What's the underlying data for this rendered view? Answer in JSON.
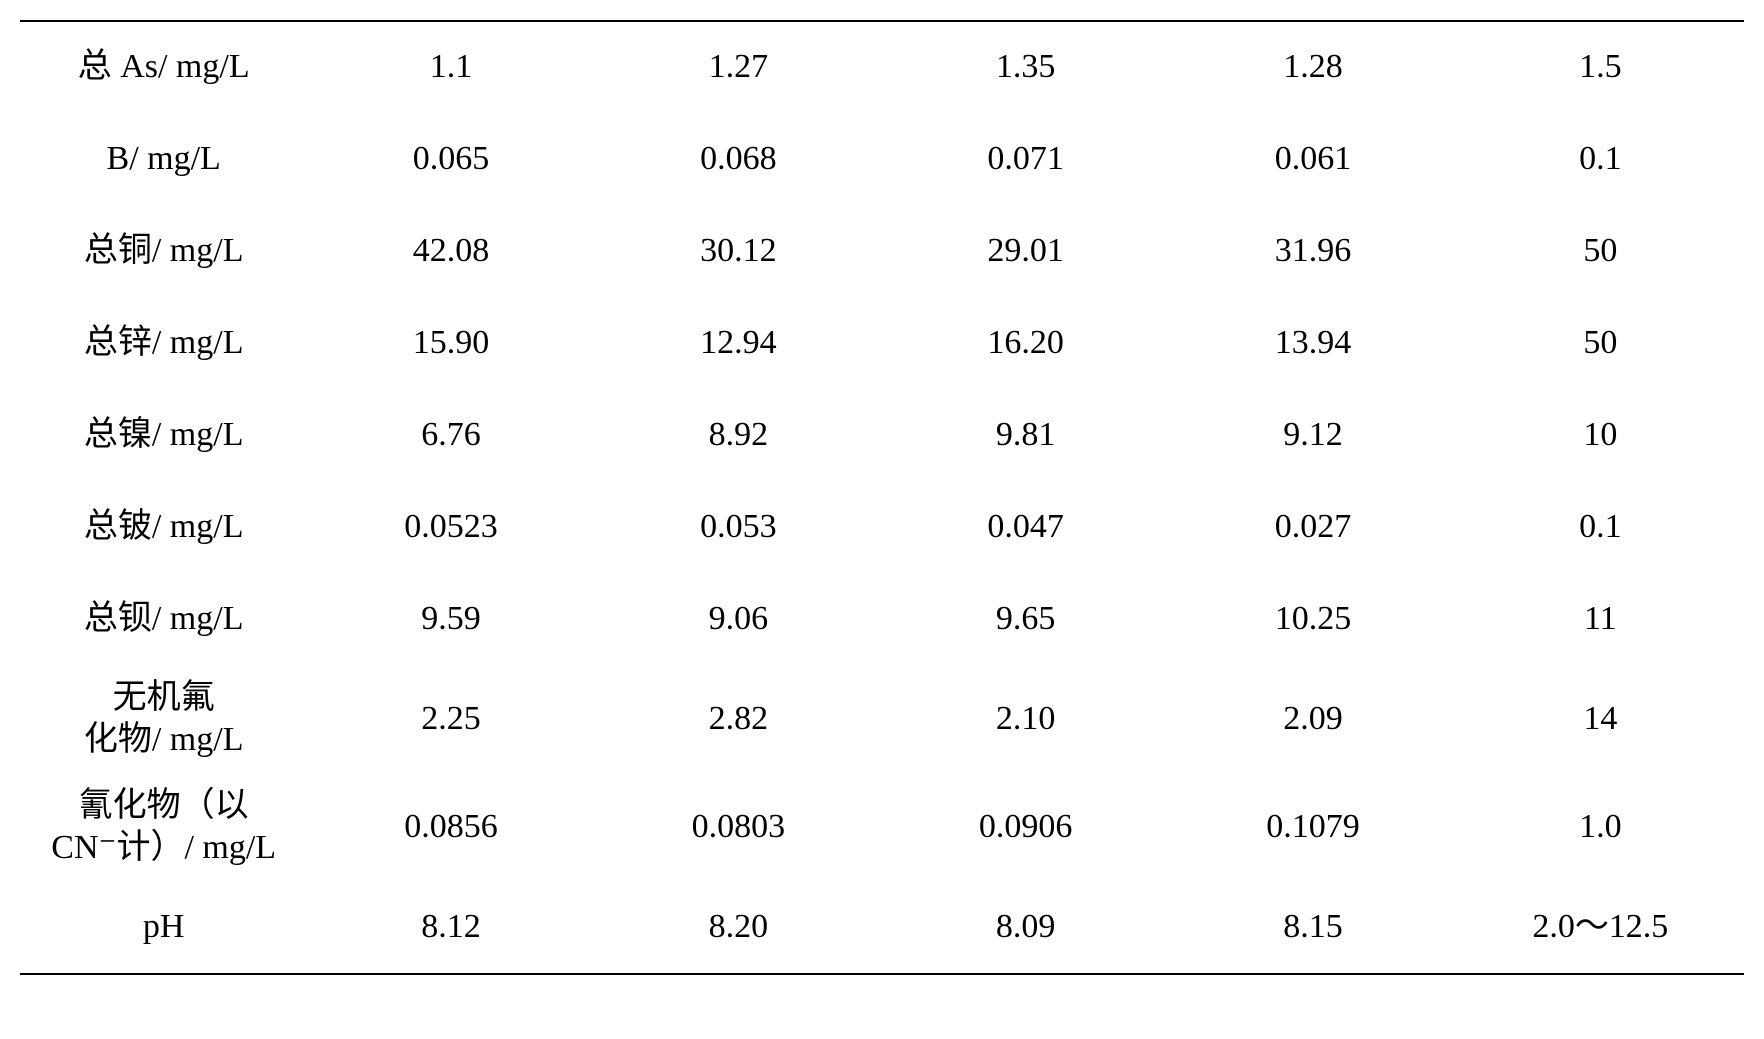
{
  "table": {
    "background_color": "#ffffff",
    "border_color": "#000000",
    "text_color": "#000000",
    "font_size_pt": 26,
    "column_widths_pct": [
      18,
      14.5,
      14.5,
      14.5,
      14.5,
      24
    ],
    "rows": [
      {
        "label": "总 As/ mg/L",
        "values": [
          "1.1",
          "1.27",
          "1.35",
          "1.28",
          "1.5"
        ]
      },
      {
        "label": "B/ mg/L",
        "values": [
          "0.065",
          "0.068",
          "0.071",
          "0.061",
          "0.1"
        ]
      },
      {
        "label": "总铜/ mg/L",
        "values": [
          "42.08",
          "30.12",
          "29.01",
          "31.96",
          "50"
        ]
      },
      {
        "label": "总锌/ mg/L",
        "values": [
          "15.90",
          "12.94",
          "16.20",
          "13.94",
          "50"
        ]
      },
      {
        "label": "总镍/ mg/L",
        "values": [
          "6.76",
          "8.92",
          "9.81",
          "9.12",
          "10"
        ]
      },
      {
        "label": "总铍/ mg/L",
        "values": [
          "0.0523",
          "0.053",
          "0.047",
          "0.027",
          "0.1"
        ]
      },
      {
        "label": "总钡/ mg/L",
        "values": [
          "9.59",
          "9.06",
          "9.65",
          "10.25",
          "11"
        ]
      },
      {
        "label_line1": "无机氟",
        "label_line2": "化物/ mg/L",
        "multiline": true,
        "values": [
          "2.25",
          "2.82",
          "2.10",
          "2.09",
          "14"
        ]
      },
      {
        "label_line1": "氰化物（以",
        "label_line2": "CN⁻计）/ mg/L",
        "multiline": true,
        "values": [
          "0.0856",
          "0.0803",
          "0.0906",
          "0.1079",
          "1.0"
        ]
      },
      {
        "label": "pH",
        "values": [
          "8.12",
          "8.20",
          "8.09",
          "8.15",
          "2.0～12.5"
        ]
      }
    ]
  }
}
